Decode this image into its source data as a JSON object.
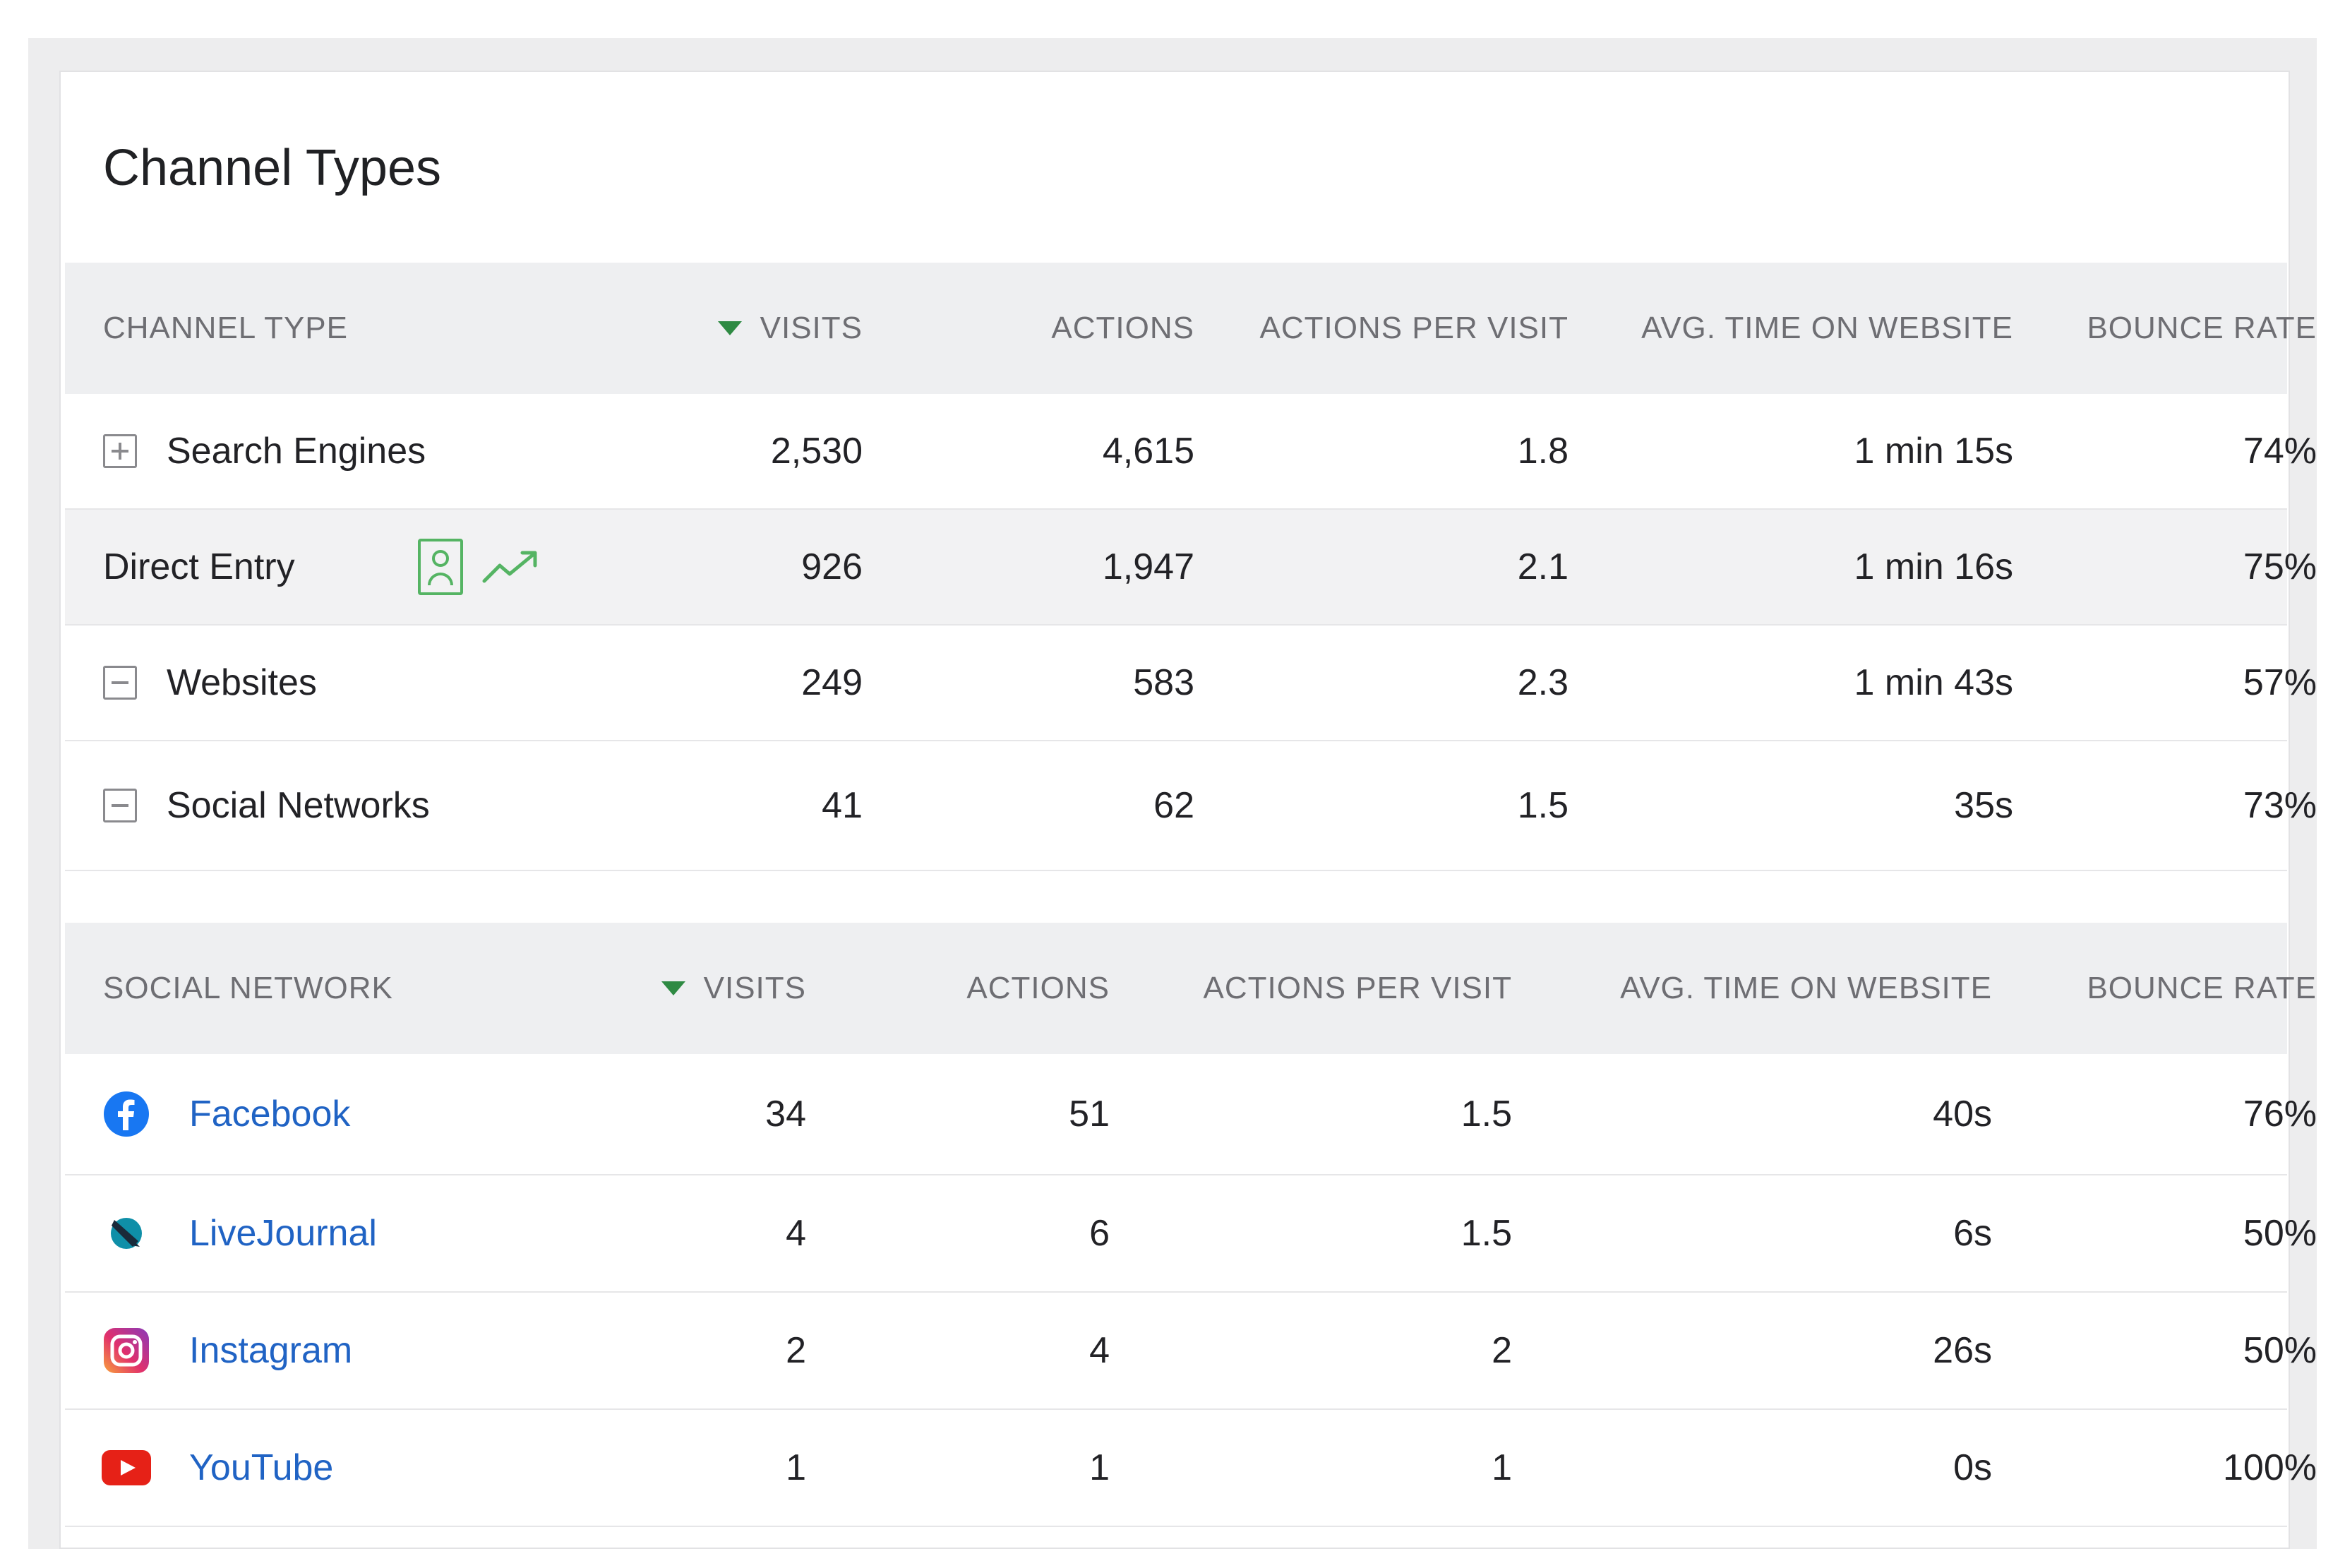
{
  "widget": {
    "title": "Channel Types"
  },
  "channel_table": {
    "headers": {
      "label": "CHANNEL TYPE",
      "visits": "VISITS",
      "actions": "ACTIONS",
      "actions_per_visit": "ACTIONS PER VISIT",
      "avg_time": "AVG. TIME ON WEBSITE",
      "bounce_rate": "BOUNCE RATE"
    },
    "rows": [
      {
        "label": "Search Engines",
        "visits": "2,530",
        "actions": "4,615",
        "actions_per_visit": "1.8",
        "avg_time": "1 min 15s",
        "bounce_rate": "74%",
        "icon": "expand-plus-icon"
      },
      {
        "label": "Direct Entry",
        "visits": "926",
        "actions": "1,947",
        "actions_per_visit": "2.1",
        "avg_time": "1 min 16s",
        "bounce_rate": "75%",
        "icon": "none"
      },
      {
        "label": "Websites",
        "visits": "249",
        "actions": "583",
        "actions_per_visit": "2.3",
        "avg_time": "1 min 43s",
        "bounce_rate": "57%",
        "icon": "collapse-minus-icon"
      },
      {
        "label": "Social Networks",
        "visits": "41",
        "actions": "62",
        "actions_per_visit": "1.5",
        "avg_time": "35s",
        "bounce_rate": "73%",
        "icon": "collapse-minus-icon"
      }
    ]
  },
  "social_table": {
    "headers": {
      "label": "SOCIAL NETWORK",
      "visits": "VISITS",
      "actions": "ACTIONS",
      "actions_per_visit": "ACTIONS PER VISIT",
      "avg_time": "AVG. TIME ON WEBSITE",
      "bounce_rate": "BOUNCE RATE"
    },
    "rows": [
      {
        "label": "Facebook",
        "visits": "34",
        "actions": "51",
        "actions_per_visit": "1.5",
        "avg_time": "40s",
        "bounce_rate": "76%",
        "icon": "facebook-icon"
      },
      {
        "label": "LiveJournal",
        "visits": "4",
        "actions": "6",
        "actions_per_visit": "1.5",
        "avg_time": "6s",
        "bounce_rate": "50%",
        "icon": "livejournal-icon"
      },
      {
        "label": "Instagram",
        "visits": "2",
        "actions": "4",
        "actions_per_visit": "2",
        "avg_time": "26s",
        "bounce_rate": "50%",
        "icon": "instagram-icon"
      },
      {
        "label": "YouTube",
        "visits": "1",
        "actions": "1",
        "actions_per_visit": "1",
        "avg_time": "0s",
        "bounce_rate": "100%",
        "icon": "youtube-icon"
      }
    ]
  },
  "colors": {
    "accent_green": "#55b463",
    "sort_arrow": "#2e8a43",
    "link_blue": "#2063c4",
    "header_bg": "#eeeff1"
  }
}
